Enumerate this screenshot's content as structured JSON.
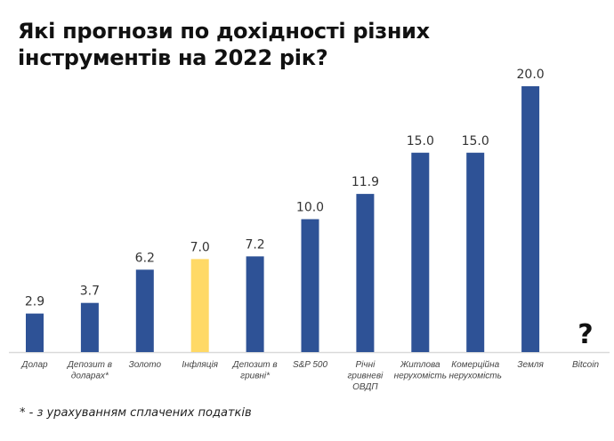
{
  "title": "Які прогнози по дохідності різних інструментів на 2022 рік?",
  "footnote": "* - з урахуванням сплачених податків",
  "colors": {
    "bar": "#2E5296",
    "highlight": "#FFD966",
    "axis": "#d9d9d9"
  },
  "chart_data": {
    "type": "bar",
    "title": "Які прогнози по дохідності різних інструментів на 2022 рік?",
    "categories": [
      [
        "Долар"
      ],
      [
        "Депозит в",
        "доларах*"
      ],
      [
        "Золото"
      ],
      [
        "Інфляція"
      ],
      [
        "Депозит в",
        "гривні*"
      ],
      [
        "S&P 500"
      ],
      [
        "Річні",
        "гривневі",
        "ОВДП"
      ],
      [
        "Житлова",
        "нерухомість"
      ],
      [
        "Комерційна",
        "нерухомість"
      ],
      [
        "Земля"
      ],
      [
        "Bitcoin"
      ]
    ],
    "values": [
      2.9,
      3.7,
      6.2,
      7.0,
      7.2,
      10.0,
      11.9,
      15.0,
      15.0,
      20.0,
      null
    ],
    "data_labels": [
      "2.9",
      "3.7",
      "6.2",
      "7.0",
      "7.2",
      "10.0",
      "11.9",
      "15.0",
      "15.0",
      "20.0",
      "?"
    ],
    "highlight_index": 3,
    "ylim": [
      0,
      20
    ],
    "xlabel": "",
    "ylabel": "",
    "grid": false
  }
}
